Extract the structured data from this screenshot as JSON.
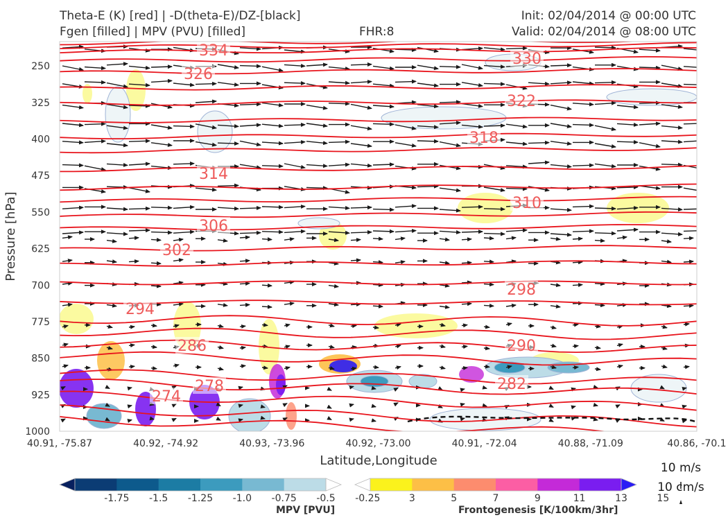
{
  "header": {
    "title_line1": "Theta-E (K) [red] | -D(theta-E)/DZ-[black]",
    "title_line2": "Fgen [filled] | MPV (PVU) [filled]",
    "fhr": "FHR:8",
    "init": "Init: 02/04/2014 @ 00:00 UTC",
    "valid": "Valid: 02/04/2014 @ 08:00 UTC"
  },
  "chart_data": {
    "type": "cross-section",
    "xlabel": "Latitude,Longitude",
    "ylabel": "Pressure [hPa]",
    "x_ticks": [
      "40.91, -75.87",
      "40.92, -74.92",
      "40.93, -73.96",
      "40.92, -73.00",
      "40.91, -72.04",
      "40.88, -71.09",
      "40.86, -70.1"
    ],
    "y_ticks": [
      250,
      325,
      400,
      475,
      550,
      625,
      700,
      775,
      850,
      925,
      1000
    ],
    "ylim": [
      1000,
      200
    ],
    "theta_e_contour_labels": [
      {
        "value": "334"
      },
      {
        "value": "330"
      },
      {
        "value": "326"
      },
      {
        "value": "322"
      },
      {
        "value": "318"
      },
      {
        "value": "314"
      },
      {
        "value": "310"
      },
      {
        "value": "306"
      },
      {
        "value": "302"
      },
      {
        "value": "298"
      },
      {
        "value": "294"
      },
      {
        "value": "290"
      },
      {
        "value": "286"
      },
      {
        "value": "282"
      },
      {
        "value": "278"
      },
      {
        "value": "274"
      }
    ],
    "theta_e_line_color": "#e8141c",
    "theta_e_label_color": "#ee5a5a",
    "vector_color": "#1a1a1a",
    "grid": false,
    "vector_scale": {
      "horizontal": "10 m/s",
      "vertical": "10 cm/s"
    }
  },
  "colorbars": {
    "mpv": {
      "label": "MPV [PVU]",
      "ticks": [
        "-1.75",
        "-1.5",
        "-1.25",
        "-1.0",
        "-0.75",
        "-0.5",
        "-0.25"
      ],
      "colors": [
        "#08205e",
        "#0b3c74",
        "#0d5a8c",
        "#1c7ca4",
        "#3c9bbe",
        "#78b9d2",
        "#bcdce7",
        "#ffffff"
      ]
    },
    "fgen": {
      "label": "Frontogenesis [K/100km/3hr]",
      "ticks": [
        "3",
        "5",
        "7",
        "9",
        "11",
        "13",
        "15"
      ],
      "colors": [
        "#ffffff",
        "#fbf21c",
        "#fdbf46",
        "#fd8c6e",
        "#fc5ea4",
        "#c42ad8",
        "#7a1df0",
        "#2a1cf5"
      ]
    }
  }
}
